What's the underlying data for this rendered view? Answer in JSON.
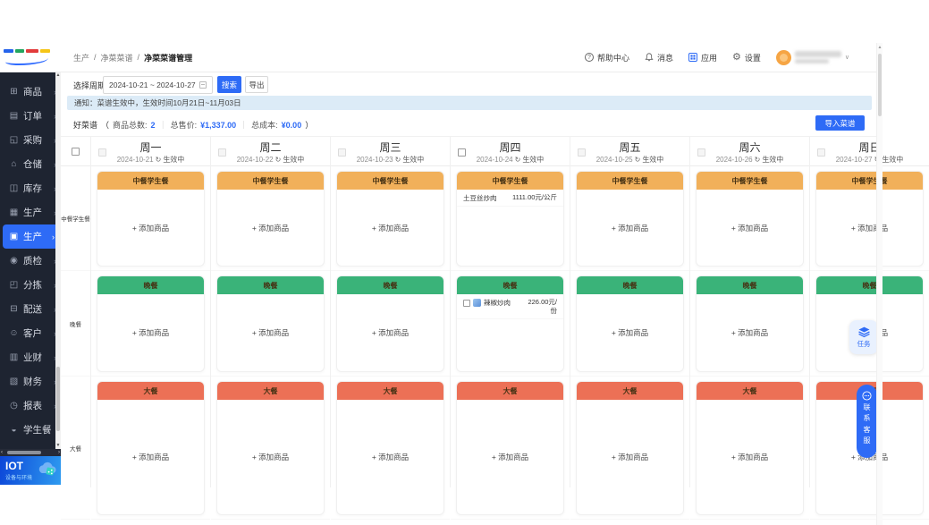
{
  "header": {
    "breadcrumb": [
      "生产",
      "净菜菜谱",
      "净菜菜谱管理"
    ],
    "breadcrumb_sep": "/",
    "actions": {
      "help": "帮助中心",
      "messages": "消息",
      "apps": "应用",
      "settings": "设置"
    }
  },
  "sidebar": {
    "items": [
      {
        "key": "goods",
        "label": "商品",
        "icon": "⊞"
      },
      {
        "key": "orders",
        "label": "订单",
        "icon": "▤"
      },
      {
        "key": "purchase",
        "label": "采购",
        "icon": "◱"
      },
      {
        "key": "warehouse",
        "label": "仓储",
        "icon": "⌂"
      },
      {
        "key": "inventory",
        "label": "库存",
        "icon": "◫"
      },
      {
        "key": "production",
        "label": "生产",
        "icon": "▦"
      },
      {
        "key": "production-active",
        "label": "生产",
        "icon": "▣",
        "active": true
      },
      {
        "key": "quality",
        "label": "质检",
        "icon": "◉"
      },
      {
        "key": "sorting",
        "label": "分拣",
        "icon": "◰"
      },
      {
        "key": "delivery",
        "label": "配送",
        "icon": "⊟"
      },
      {
        "key": "customers",
        "label": "客户",
        "icon": "☺"
      },
      {
        "key": "biz-finance",
        "label": "业财",
        "icon": "▥"
      },
      {
        "key": "finance",
        "label": "财务",
        "icon": "▧"
      },
      {
        "key": "reports",
        "label": "报表",
        "icon": "◷"
      },
      {
        "key": "student-meal",
        "label": "学生餐",
        "icon": "◒",
        "arrow": false
      }
    ],
    "iot_banner": {
      "title": "IOT",
      "subtitle": "设备与环境"
    }
  },
  "filter": {
    "period_label": "选择周期",
    "date_range": "2024-10-21 ~ 2024-10-27",
    "search_button": "搜索",
    "export_button": "导出"
  },
  "notice": "通知：菜谱生效中，生效时间10月21日~11月03日",
  "summary": {
    "menu_name": "好菜谱",
    "paren_open": "（",
    "paren_close": "）",
    "sep": "｜",
    "items_label": "商品总数:",
    "items_count": "2",
    "price_label": "总售价:",
    "price_value": "¥1,337.00",
    "cost_label": "总成本:",
    "cost_value": "¥0.00",
    "import_button": "导入菜谱"
  },
  "calendar": {
    "status_icon": "↻",
    "add_item_label": "+ 添加商品",
    "days": [
      {
        "name": "周一",
        "date": "2024-10-21",
        "status": "生效中",
        "checkbox_enabled": false
      },
      {
        "name": "周二",
        "date": "2024-10-22",
        "status": "生效中",
        "checkbox_enabled": false
      },
      {
        "name": "周三",
        "date": "2024-10-23",
        "status": "生效中",
        "checkbox_enabled": false
      },
      {
        "name": "周四",
        "date": "2024-10-24",
        "status": "生效中",
        "checkbox_enabled": true
      },
      {
        "name": "周五",
        "date": "2024-10-25",
        "status": "生效中",
        "checkbox_enabled": false
      },
      {
        "name": "周六",
        "date": "2024-10-26",
        "status": "生效中",
        "checkbox_enabled": false
      },
      {
        "name": "周日",
        "date": "2024-10-27",
        "status": "生效中",
        "checkbox_enabled": false
      }
    ],
    "meals": [
      {
        "name": "中餐学生餐",
        "color": "#f1b05a"
      },
      {
        "name": "晚餐",
        "color": "#3ab379"
      },
      {
        "name": "大餐",
        "color": "#ec7056"
      }
    ],
    "cells": [
      {
        "day": 3,
        "meal": 0,
        "items": [
          {
            "name": "土豆丝炒肉",
            "price": "1111.00元/公斤",
            "has_checkbox": false
          }
        ]
      },
      {
        "day": 3,
        "meal": 1,
        "items": [
          {
            "name": "辣椒炒肉",
            "price": "226.00元/份",
            "has_checkbox": true
          }
        ]
      }
    ]
  },
  "floating": {
    "tasks": "任务",
    "support": "联系客服"
  }
}
